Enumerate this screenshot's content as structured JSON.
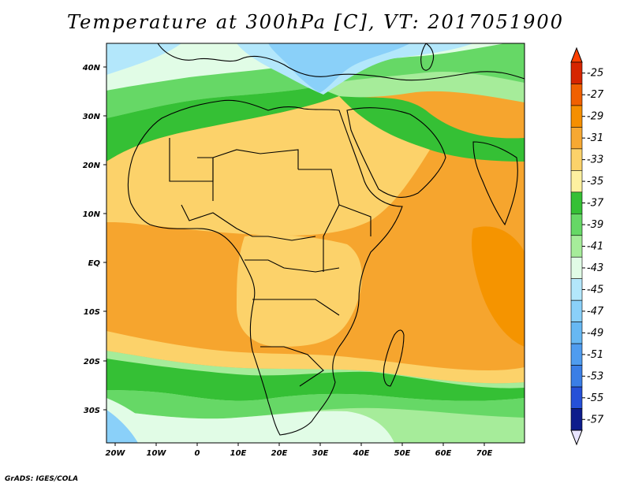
{
  "title": "Temperature at 300hPa [C], VT: 2017051900",
  "credit": "GrADS: IGES/COLA",
  "map": {
    "lat_labels": [
      "40N",
      "30N",
      "20N",
      "10N",
      "EQ",
      "10S",
      "20S",
      "30S"
    ],
    "lon_labels": [
      "20W",
      "10W",
      "0",
      "10E",
      "20E",
      "30E",
      "40E",
      "50E",
      "60E",
      "70E"
    ],
    "lon_range": [
      -22,
      80
    ],
    "lat_range": [
      -37,
      45
    ]
  },
  "colorbar": {
    "labels": [
      "-25",
      "-27",
      "-29",
      "-31",
      "-33",
      "-35",
      "-37",
      "-39",
      "-41",
      "-43",
      "-45",
      "-47",
      "-49",
      "-51",
      "-53",
      "-55",
      "-57"
    ],
    "colors": [
      "#d62500",
      "#f06000",
      "#f58f00",
      "#f7a832",
      "#fcd26a",
      "#fdf0a0",
      "#35c035",
      "#66d866",
      "#a6ec9a",
      "#e1fce6",
      "#b3e7fb",
      "#8ad0f9",
      "#67b8f3",
      "#4f9cef",
      "#3a7ee6",
      "#2550d8",
      "#0d1c8c"
    ],
    "top_color": "#ff4000",
    "bottom_color": "#e8e4ff"
  },
  "fields": {
    "background_color": "#f6a52e",
    "bands": [
      {
        "name": "north-green",
        "color": "#35c035"
      },
      {
        "name": "north-lightgreen",
        "color": "#66d866"
      },
      {
        "name": "north-palegreen",
        "color": "#a6ec9a"
      },
      {
        "name": "north-pale",
        "color": "#e1fce6"
      },
      {
        "name": "north-lightblue",
        "color": "#b3e7fb"
      },
      {
        "name": "north-blue",
        "color": "#8ad0f9"
      },
      {
        "name": "sahara-yellow",
        "color": "#fcd26a"
      },
      {
        "name": "south-palegreen",
        "color": "#a6ec9a"
      },
      {
        "name": "south-lightgreen",
        "color": "#66d866"
      },
      {
        "name": "south-green",
        "color": "#35c035"
      },
      {
        "name": "south-pale",
        "color": "#e1fce6"
      },
      {
        "name": "south-blue",
        "color": "#8ad0f9"
      }
    ]
  }
}
